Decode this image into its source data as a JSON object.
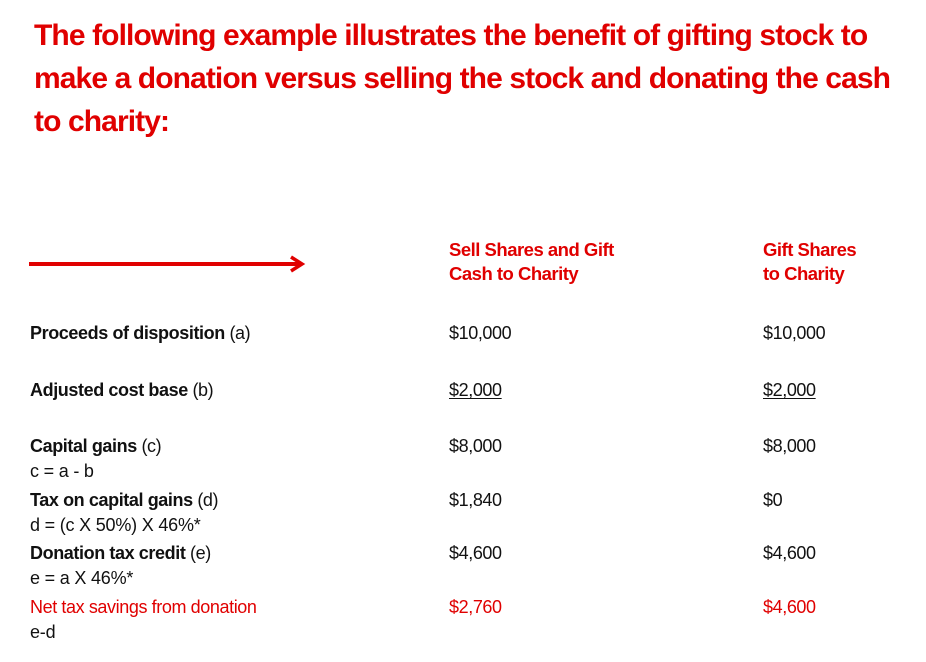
{
  "heading": "The following example illustrates the benefit of gifting stock to make a donation versus selling the stock and donating the cash to charity:",
  "columns": {
    "sell": "Sell Shares and Gift\nCash to Charity",
    "gift": "Gift Shares\nto Charity"
  },
  "rows": [
    {
      "label": "Proceeds of disposition",
      "ref": "(a)",
      "formula": "",
      "sell": "$10,000",
      "gift": "$10,000"
    },
    {
      "label": "Adjusted cost base",
      "ref": "(b)",
      "formula": "",
      "sell": "$2,000",
      "gift": "$2,000"
    },
    {
      "label": "Capital gains",
      "ref": "(c)",
      "formula": "c = a - b",
      "sell": "$8,000",
      "gift": "$8,000"
    },
    {
      "label": "Tax on capital gains",
      "ref": "(d)",
      "formula": "d = (c X 50%) X 46%*",
      "sell": "$1,840",
      "gift": "$0"
    },
    {
      "label": "Donation tax credit",
      "ref": "(e)",
      "formula": "e = a X 46%*",
      "sell": "$4,600",
      "gift": "$4,600"
    },
    {
      "label": "Net tax savings from donation",
      "ref": "",
      "formula": "e-d",
      "sell": "$2,760",
      "gift": "$4,600"
    }
  ],
  "colors": {
    "accent": "#e00000",
    "text": "#111111"
  }
}
